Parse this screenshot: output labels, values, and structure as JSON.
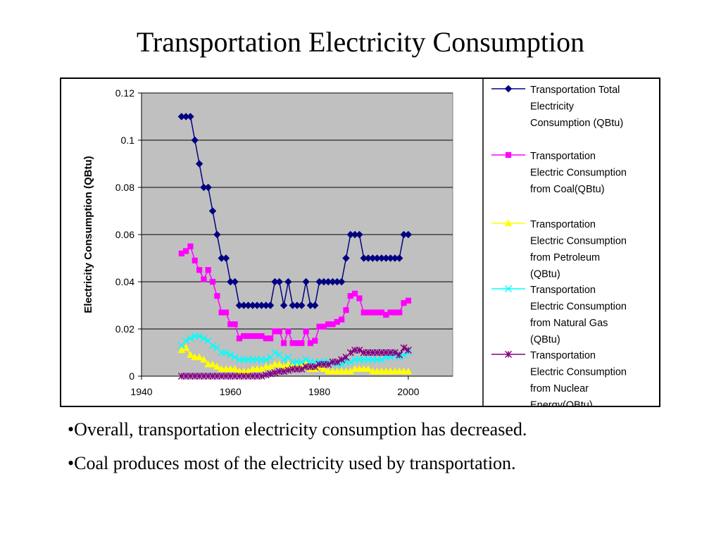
{
  "slide": {
    "title": "Transportation Electricity Consumption",
    "bullets": [
      "•Overall, transportation electricity consumption has decreased.",
      "•Coal produces most of the electricity used by transportation."
    ]
  },
  "chart_data": {
    "type": "line",
    "title": "",
    "xlabel": "",
    "ylabel": "Electricity Consumption (QBtu)",
    "xlim": [
      1940,
      2010
    ],
    "ylim": [
      0,
      0.12
    ],
    "x_ticks": [
      "1940",
      "1960",
      "1980",
      "2000"
    ],
    "y_ticks": [
      "0",
      "0.02",
      "0.04",
      "0.06",
      "0.08",
      "0.1",
      "0.12"
    ],
    "grid": "horizontal",
    "plot_background": "#c0c0c0",
    "legend_position": "right",
    "x": [
      1949,
      1950,
      1951,
      1952,
      1953,
      1954,
      1955,
      1956,
      1957,
      1958,
      1959,
      1960,
      1961,
      1962,
      1963,
      1964,
      1965,
      1966,
      1967,
      1968,
      1969,
      1970,
      1971,
      1972,
      1973,
      1974,
      1975,
      1976,
      1977,
      1978,
      1979,
      1980,
      1981,
      1982,
      1983,
      1984,
      1985,
      1986,
      1987,
      1988,
      1989,
      1990,
      1991,
      1992,
      1993,
      1994,
      1995,
      1996,
      1997,
      1998,
      1999,
      2000
    ],
    "series": [
      {
        "name": "Transportation Total Electricity Consumption (QBtu)",
        "color": "#000080",
        "marker": "diamond",
        "values": [
          0.11,
          0.11,
          0.11,
          0.1,
          0.09,
          0.08,
          0.08,
          0.07,
          0.06,
          0.05,
          0.05,
          0.04,
          0.04,
          0.03,
          0.03,
          0.03,
          0.03,
          0.03,
          0.03,
          0.03,
          0.03,
          0.04,
          0.04,
          0.03,
          0.04,
          0.03,
          0.03,
          0.03,
          0.04,
          0.03,
          0.03,
          0.04,
          0.04,
          0.04,
          0.04,
          0.04,
          0.04,
          0.05,
          0.06,
          0.06,
          0.06,
          0.05,
          0.05,
          0.05,
          0.05,
          0.05,
          0.05,
          0.05,
          0.05,
          0.05,
          0.06,
          0.06
        ]
      },
      {
        "name": "Transportation Electric Consumption from Coal(QBtu)",
        "color": "#ff00ff",
        "marker": "square",
        "values": [
          0.052,
          0.053,
          0.055,
          0.049,
          0.045,
          0.041,
          0.045,
          0.04,
          0.034,
          0.027,
          0.027,
          0.022,
          0.022,
          0.016,
          0.017,
          0.017,
          0.017,
          0.017,
          0.017,
          0.016,
          0.016,
          0.019,
          0.019,
          0.014,
          0.019,
          0.014,
          0.014,
          0.014,
          0.019,
          0.014,
          0.015,
          0.021,
          0.021,
          0.022,
          0.022,
          0.023,
          0.024,
          0.028,
          0.034,
          0.035,
          0.033,
          0.027,
          0.027,
          0.027,
          0.027,
          0.027,
          0.026,
          0.027,
          0.027,
          0.027,
          0.031,
          0.032
        ]
      },
      {
        "name": "Transportation Electric Consumption from Petroleum (QBtu)",
        "color": "#ffff00",
        "marker": "triangle",
        "values": [
          0.011,
          0.012,
          0.009,
          0.008,
          0.008,
          0.007,
          0.005,
          0.005,
          0.004,
          0.003,
          0.003,
          0.003,
          0.003,
          0.002,
          0.002,
          0.002,
          0.003,
          0.003,
          0.003,
          0.004,
          0.004,
          0.005,
          0.005,
          0.004,
          0.005,
          0.004,
          0.004,
          0.004,
          0.005,
          0.003,
          0.003,
          0.004,
          0.003,
          0.002,
          0.002,
          0.002,
          0.002,
          0.002,
          0.002,
          0.003,
          0.003,
          0.003,
          0.003,
          0.002,
          0.002,
          0.002,
          0.002,
          0.002,
          0.002,
          0.002,
          0.002,
          0.002
        ]
      },
      {
        "name": "Transportation Electric Consumption from Natural Gas (QBtu)",
        "color": "#00ffff",
        "marker": "x",
        "values": [
          0.013,
          0.015,
          0.016,
          0.017,
          0.017,
          0.016,
          0.015,
          0.013,
          0.012,
          0.01,
          0.01,
          0.009,
          0.008,
          0.007,
          0.007,
          0.007,
          0.007,
          0.007,
          0.007,
          0.007,
          0.008,
          0.01,
          0.009,
          0.007,
          0.008,
          0.006,
          0.006,
          0.006,
          0.007,
          0.006,
          0.006,
          0.006,
          0.006,
          0.006,
          0.006,
          0.005,
          0.005,
          0.006,
          0.006,
          0.007,
          0.007,
          0.007,
          0.007,
          0.007,
          0.007,
          0.007,
          0.008,
          0.008,
          0.009,
          0.008,
          0.009,
          0.01
        ]
      },
      {
        "name": "Transportation Electric Consumption from Nuclear Energy(QBtu)",
        "color": "#800080",
        "marker": "asterisk",
        "values": [
          0,
          0,
          0,
          0,
          0,
          0,
          0,
          0,
          0,
          0,
          0,
          0,
          0,
          0,
          0,
          0,
          0,
          0,
          0,
          0.0005,
          0.001,
          0.0015,
          0.002,
          0.002,
          0.0025,
          0.003,
          0.003,
          0.003,
          0.004,
          0.004,
          0.004,
          0.005,
          0.005,
          0.005,
          0.006,
          0.006,
          0.007,
          0.008,
          0.01,
          0.011,
          0.011,
          0.01,
          0.01,
          0.01,
          0.01,
          0.01,
          0.01,
          0.01,
          0.01,
          0.009,
          0.012,
          0.011
        ]
      }
    ]
  }
}
